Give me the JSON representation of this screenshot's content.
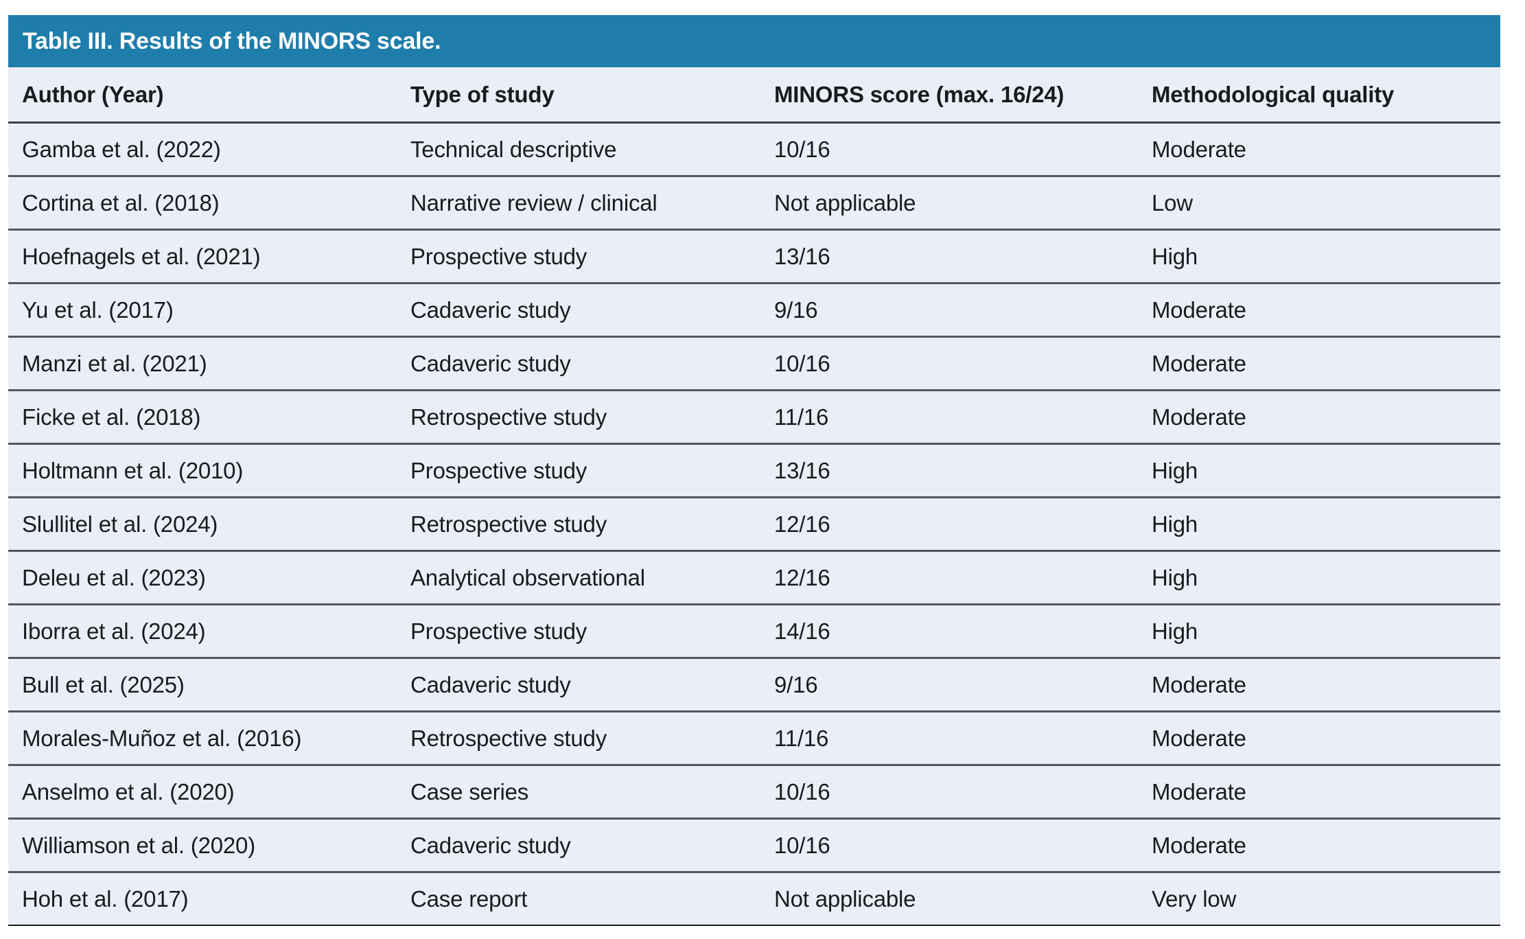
{
  "table": {
    "title": "Table III. Results of the MINORS scale.",
    "columns": [
      "Author (Year)",
      "Type of study",
      "MINORS score (max. 16/24)",
      "Methodological quality"
    ],
    "rows": [
      {
        "author": "Gamba et al. (2022)",
        "type": "Technical descriptive",
        "score": "10/16",
        "quality": "Moderate"
      },
      {
        "author": "Cortina et al. (2018)",
        "type": "Narrative review / clinical",
        "score": "Not applicable",
        "quality": "Low"
      },
      {
        "author": "Hoefnagels et al. (2021)",
        "type": "Prospective study",
        "score": "13/16",
        "quality": "High"
      },
      {
        "author": "Yu et al. (2017)",
        "type": "Cadaveric study",
        "score": "9/16",
        "quality": "Moderate"
      },
      {
        "author": "Manzi et al. (2021)",
        "type": "Cadaveric study",
        "score": "10/16",
        "quality": "Moderate"
      },
      {
        "author": "Ficke et al. (2018)",
        "type": "Retrospective study",
        "score": "11/16",
        "quality": "Moderate"
      },
      {
        "author": "Holtmann et al. (2010)",
        "type": "Prospective study",
        "score": "13/16",
        "quality": "High"
      },
      {
        "author": "Slullitel et al. (2024)",
        "type": "Retrospective study",
        "score": "12/16",
        "quality": "High"
      },
      {
        "author": "Deleu et al. (2023)",
        "type": "Analytical observational",
        "score": "12/16",
        "quality": "High"
      },
      {
        "author": "Iborra et al. (2024)",
        "type": "Prospective study",
        "score": "14/16",
        "quality": "High"
      },
      {
        "author": "Bull et al. (2025)",
        "type": "Cadaveric study",
        "score": "9/16",
        "quality": "Moderate"
      },
      {
        "author": "Morales-Muñoz et al. (2016)",
        "type": "Retrospective study",
        "score": "11/16",
        "quality": "Moderate"
      },
      {
        "author": "Anselmo et al. (2020)",
        "type": "Case series",
        "score": "10/16",
        "quality": "Moderate"
      },
      {
        "author": "Williamson et al. (2020)",
        "type": "Cadaveric study",
        "score": "10/16",
        "quality": "Moderate"
      },
      {
        "author": "Hoh et al. (2017)",
        "type": "Case report",
        "score": "Not applicable",
        "quality": "Very low"
      }
    ]
  },
  "colors": {
    "header_bg": "#1e7dab",
    "title_text": "#ffffff",
    "row_bg": "#eaeef6",
    "divider": "#54565b",
    "header_divider": "#3e4045",
    "bottom_border": "#1b1c1e",
    "text": "#1a1b1e"
  }
}
